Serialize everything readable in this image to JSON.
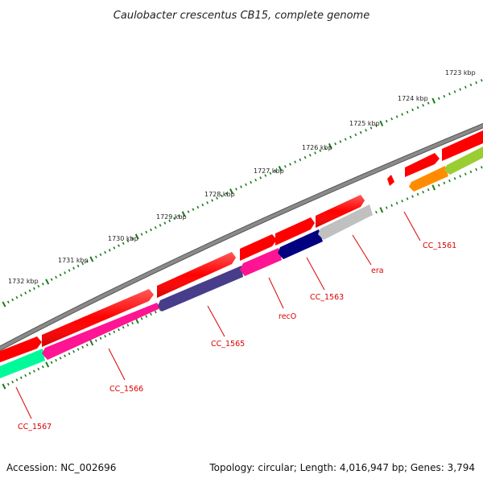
{
  "title": "Caulobacter crescentus CB15, complete genome",
  "footer": {
    "accession": "Accession: NC_002696",
    "summary": "Topology: circular; Length: 4,016,947 bp; Genes: 3,794"
  },
  "scale_labels": [
    "1723 kbp",
    "1724 kbp",
    "1725 kbp",
    "1726 kbp",
    "1727 kbp",
    "1728 kbp",
    "1729 kbp",
    "1730 kbp",
    "1731 kbp",
    "1732 kbp"
  ],
  "gene_labels": [
    "CC_1561",
    "era",
    "CC_1563",
    "recO",
    "CC_1565",
    "CC_1566",
    "CC_1567"
  ],
  "colors": {
    "backbone": "#808080",
    "forward_strand": "#ff0000",
    "tick": "#1a7a1a",
    "label": "#dd0000",
    "callout_line": "#dd0000"
  },
  "features": [
    {
      "strand": "+",
      "color": "#ff0000"
    },
    {
      "strand": "-",
      "color": "#ff1493"
    },
    {
      "strand": "-",
      "color": "#483d8b"
    },
    {
      "strand": "-",
      "color": "#000080"
    },
    {
      "strand": "-",
      "color": "#c0c0c0"
    },
    {
      "strand": "-",
      "color": "#ff8c00"
    },
    {
      "strand": "-",
      "color": "#9acd32"
    },
    {
      "strand": "-",
      "color": "#00fa9a"
    }
  ]
}
